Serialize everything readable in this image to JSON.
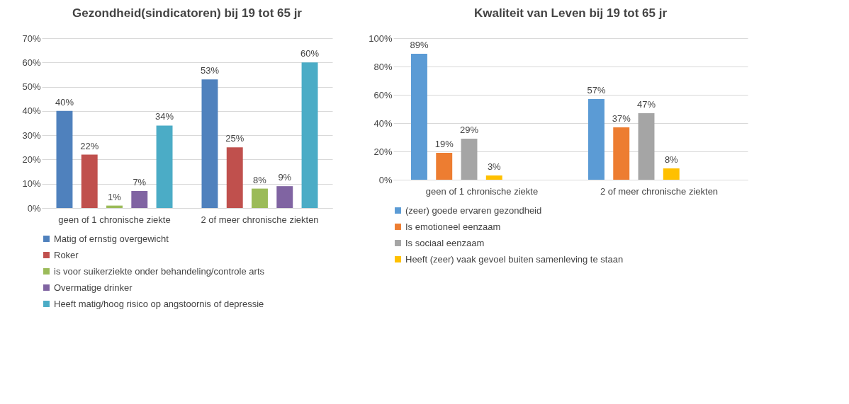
{
  "chart_data": [
    {
      "type": "bar",
      "title": "Gezondheid(sindicatoren) bij 19 tot 65 jr",
      "categories": [
        "geen of 1 chronische ziekte",
        "2 of meer chronische ziekten"
      ],
      "series": [
        {
          "name": "Matig of ernstig overgewicht",
          "color": "#4f81bd",
          "values": [
            40,
            53
          ],
          "value_labels": [
            "40%",
            "53%"
          ]
        },
        {
          "name": "Roker",
          "color": "#c0504d",
          "values": [
            22,
            25
          ],
          "value_labels": [
            "22%",
            "25%"
          ]
        },
        {
          "name": "is voor suikerziekte onder behandeling/controle arts",
          "color": "#9bbb59",
          "values": [
            1,
            8
          ],
          "value_labels": [
            "1%",
            "8%"
          ]
        },
        {
          "name": "Overmatige drinker",
          "color": "#8064a2",
          "values": [
            7,
            9
          ],
          "value_labels": [
            "7%",
            "9%"
          ]
        },
        {
          "name": "Heeft matig/hoog risico op angstoornis of depressie",
          "color": "#4bacc6",
          "values": [
            34,
            60
          ],
          "value_labels": [
            "34%",
            "60%"
          ]
        }
      ],
      "ylim": [
        0,
        70
      ],
      "yticks": [
        {
          "value": 0,
          "label": "0%"
        },
        {
          "value": 10,
          "label": "10%"
        },
        {
          "value": 20,
          "label": "20%"
        },
        {
          "value": 30,
          "label": "30%"
        },
        {
          "value": 40,
          "label": "40%"
        },
        {
          "value": 50,
          "label": "50%"
        },
        {
          "value": 60,
          "label": "60%"
        },
        {
          "value": 70,
          "label": "70%"
        }
      ],
      "grid": true,
      "legend": "bottom"
    },
    {
      "type": "bar",
      "title": "Kwaliteit van Leven bij 19 tot 65 jr",
      "categories": [
        "geen of 1 chronische ziekte",
        "2 of meer chronische ziekten"
      ],
      "series": [
        {
          "name": "(zeer) goede ervaren gezondheid",
          "color": "#5b9bd5",
          "values": [
            89,
            57
          ],
          "value_labels": [
            "89%",
            "57%"
          ]
        },
        {
          "name": "Is emotioneel eenzaam",
          "color": "#ed7d31",
          "values": [
            19,
            37
          ],
          "value_labels": [
            "19%",
            "37%"
          ]
        },
        {
          "name": "Is sociaal eenzaam",
          "color": "#a5a5a5",
          "values": [
            29,
            47
          ],
          "value_labels": [
            "29%",
            "47%"
          ]
        },
        {
          "name": "Heeft (zeer) vaak gevoel buiten samenleving te staan",
          "color": "#ffc000",
          "values": [
            3,
            8
          ],
          "value_labels": [
            "3%",
            "8%"
          ]
        }
      ],
      "ylim": [
        0,
        100
      ],
      "yticks": [
        {
          "value": 0,
          "label": "0%"
        },
        {
          "value": 20,
          "label": "20%"
        },
        {
          "value": 40,
          "label": "40%"
        },
        {
          "value": 60,
          "label": "60%"
        },
        {
          "value": 80,
          "label": "80%"
        },
        {
          "value": 100,
          "label": "100%"
        }
      ],
      "grid": true,
      "legend": "bottom"
    }
  ]
}
